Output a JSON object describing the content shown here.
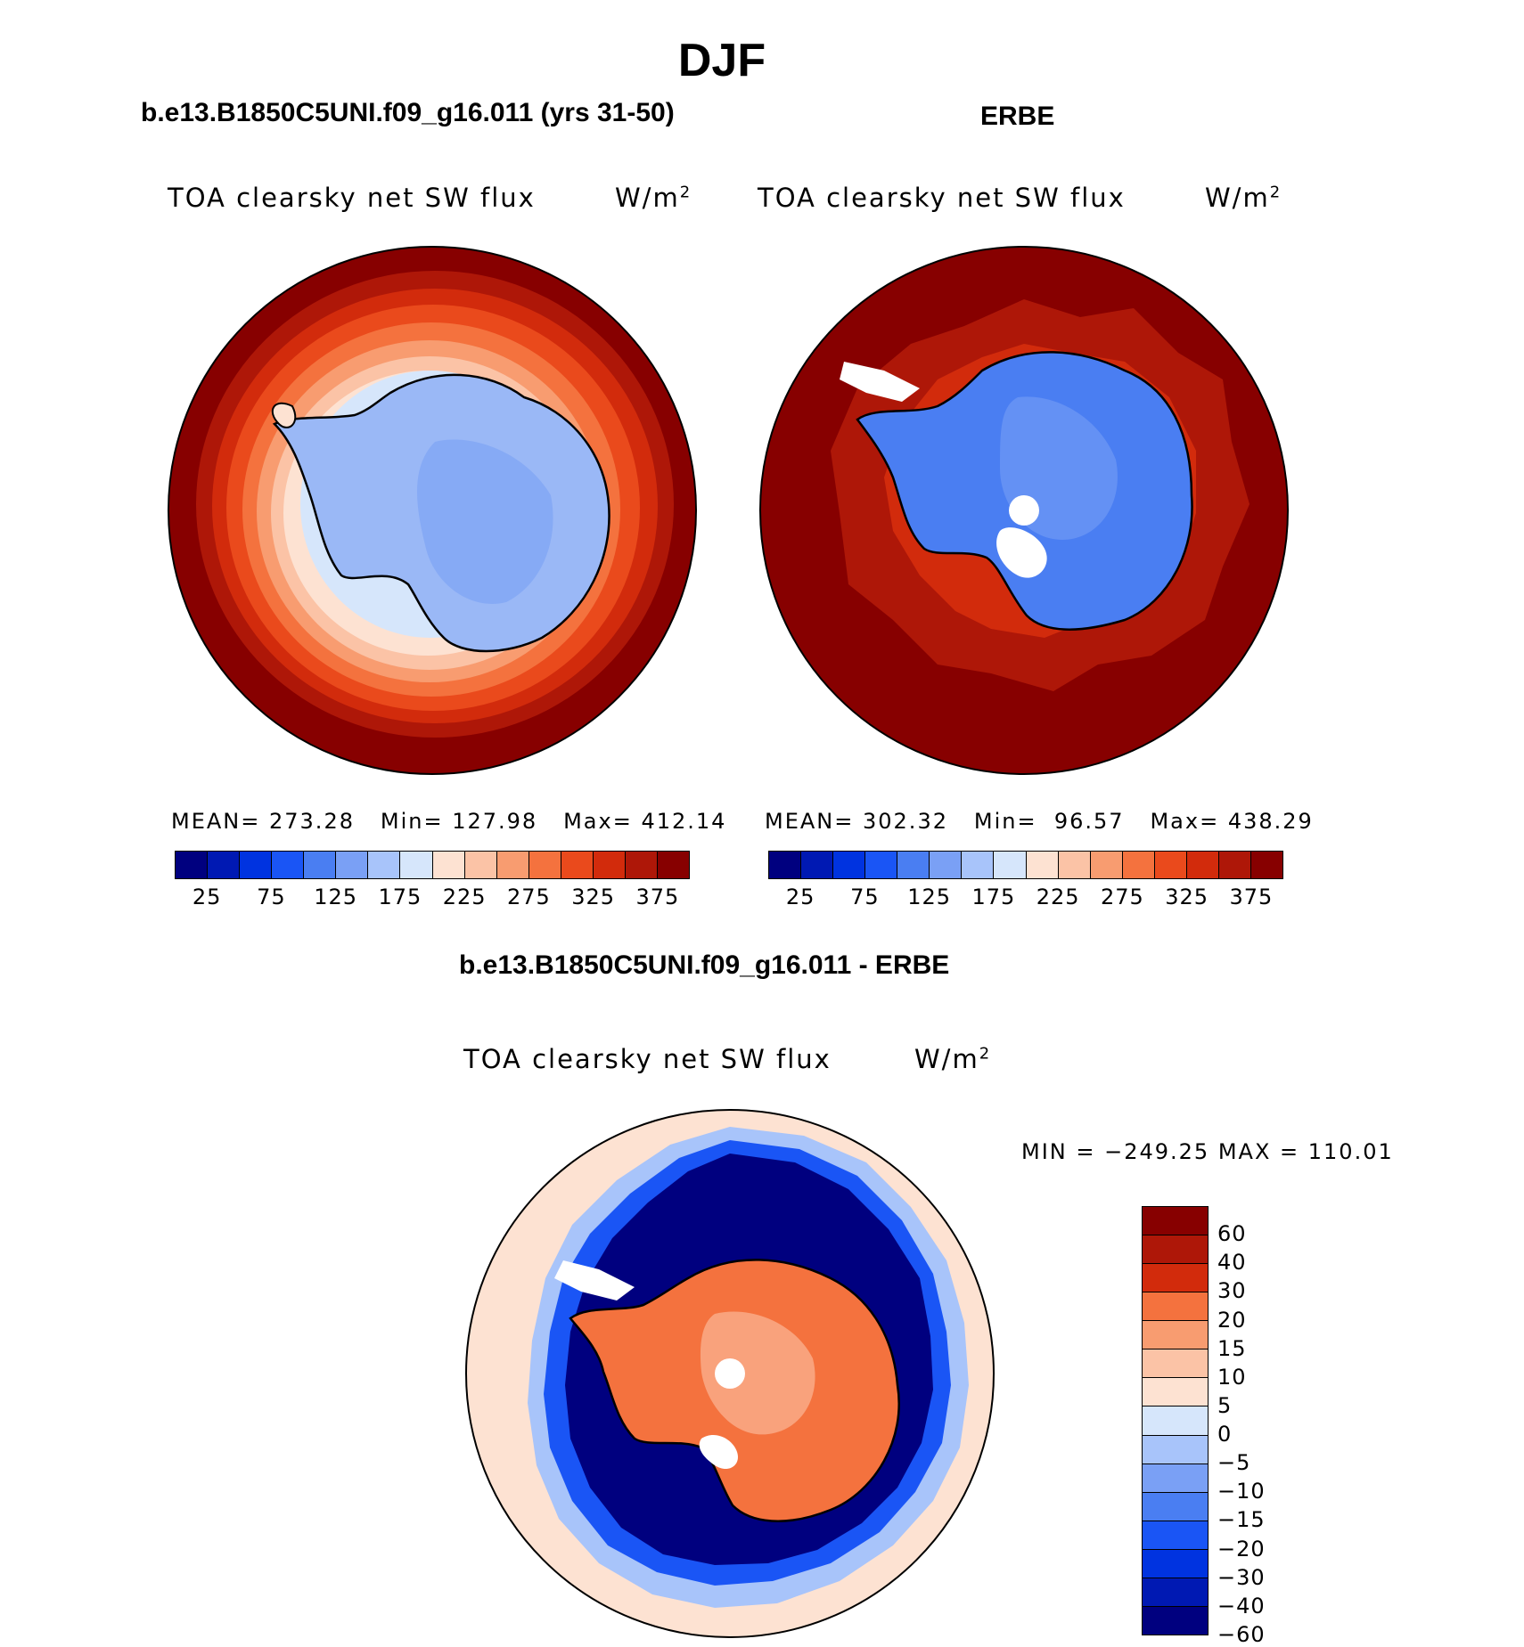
{
  "main_title": "DJF",
  "panels": [
    {
      "title": "b.e13.B1850C5UNI.f09_g16.011 (yrs 31-50)",
      "variable": "TOA clearsky net SW flux",
      "units_base": "W/m",
      "units_exp": "2",
      "mean_label": "MEAN=",
      "mean": "273.28",
      "min_label": "Min=",
      "min": "127.98",
      "max_label": "Max=",
      "max": "412.14"
    },
    {
      "title": "ERBE",
      "variable": "TOA clearsky net SW flux",
      "units_base": "W/m",
      "units_exp": "2",
      "mean_label": "MEAN=",
      "mean": "302.32",
      "min_label": "Min=",
      "min": "96.57",
      "max_label": "Max=",
      "max": "438.29"
    }
  ],
  "difference": {
    "title": "b.e13.B1850C5UNI.f09_g16.011 - ERBE",
    "variable": "TOA clearsky net SW flux",
    "units_base": "W/m",
    "units_exp": "2",
    "minmax": "MIN = −249.25 MAX = 110.01"
  },
  "chart_data": [
    {
      "type": "heatmap",
      "projection": "south polar stereographic",
      "title": "b.e13.B1850C5UNI.f09_g16.011 (yrs 31-50)",
      "variable": "TOA clearsky net SW flux",
      "stats": {
        "mean": 273.28,
        "min": 127.98,
        "max": 412.14
      },
      "colorbar": {
        "orientation": "horizontal",
        "tick_labels": [
          "25",
          "75",
          "125",
          "175",
          "225",
          "275",
          "325",
          "375"
        ],
        "colors": [
          "#00007f",
          "#0019b3",
          "#0033e0",
          "#1a55f5",
          "#4a7ef2",
          "#7aa0f5",
          "#a8c4fa",
          "#d6e6fb",
          "#fde2d2",
          "#fbc3a6",
          "#f89c70",
          "#f4723e",
          "#ea4a1c",
          "#d22b0c",
          "#ae1708",
          "#870000"
        ]
      },
      "regions": {
        "ocean_edge": "#870000",
        "ice_edge_rings": [
          "#ae1708",
          "#ea4a1c",
          "#f89c70",
          "#fbc3a6",
          "#fde2d2",
          "#d6e6fb"
        ],
        "continent": "#9ab8f6"
      }
    },
    {
      "type": "heatmap",
      "projection": "south polar stereographic",
      "title": "ERBE",
      "variable": "TOA clearsky net SW flux",
      "stats": {
        "mean": 302.32,
        "min": 96.57,
        "max": 438.29
      },
      "colorbar": {
        "orientation": "horizontal",
        "tick_labels": [
          "25",
          "75",
          "125",
          "175",
          "225",
          "275",
          "325",
          "375"
        ],
        "colors": [
          "#00007f",
          "#0019b3",
          "#0033e0",
          "#1a55f5",
          "#4a7ef2",
          "#7aa0f5",
          "#a8c4fa",
          "#d6e6fb",
          "#fde2d2",
          "#fbc3a6",
          "#f89c70",
          "#f4723e",
          "#ea4a1c",
          "#d22b0c",
          "#ae1708",
          "#870000"
        ]
      },
      "regions": {
        "ocean_edge": "#870000",
        "continent": "#4a7ef2"
      }
    },
    {
      "type": "heatmap",
      "projection": "south polar stereographic",
      "title": "b.e13.B1850C5UNI.f09_g16.011 - ERBE",
      "variable": "TOA clearsky net SW flux",
      "stats": {
        "min": -249.25,
        "max": 110.01
      },
      "colorbar": {
        "orientation": "vertical",
        "tick_labels": [
          "60",
          "40",
          "30",
          "20",
          "15",
          "10",
          "5",
          "0",
          "−5",
          "−10",
          "−15",
          "−20",
          "−30",
          "−40",
          "−60"
        ],
        "colors": [
          "#870000",
          "#ae1708",
          "#d22b0c",
          "#f4723e",
          "#f89c70",
          "#fbc3a6",
          "#fde2d2",
          "#d6e6fb",
          "#a8c4fa",
          "#7aa0f5",
          "#4a7ef2",
          "#1a55f5",
          "#0033e0",
          "#0019b3",
          "#00007f"
        ]
      },
      "regions": {
        "outer_ocean": "#fde2d2",
        "sea_ice_ring": "#00007f",
        "continent": "#f4723e"
      }
    }
  ]
}
